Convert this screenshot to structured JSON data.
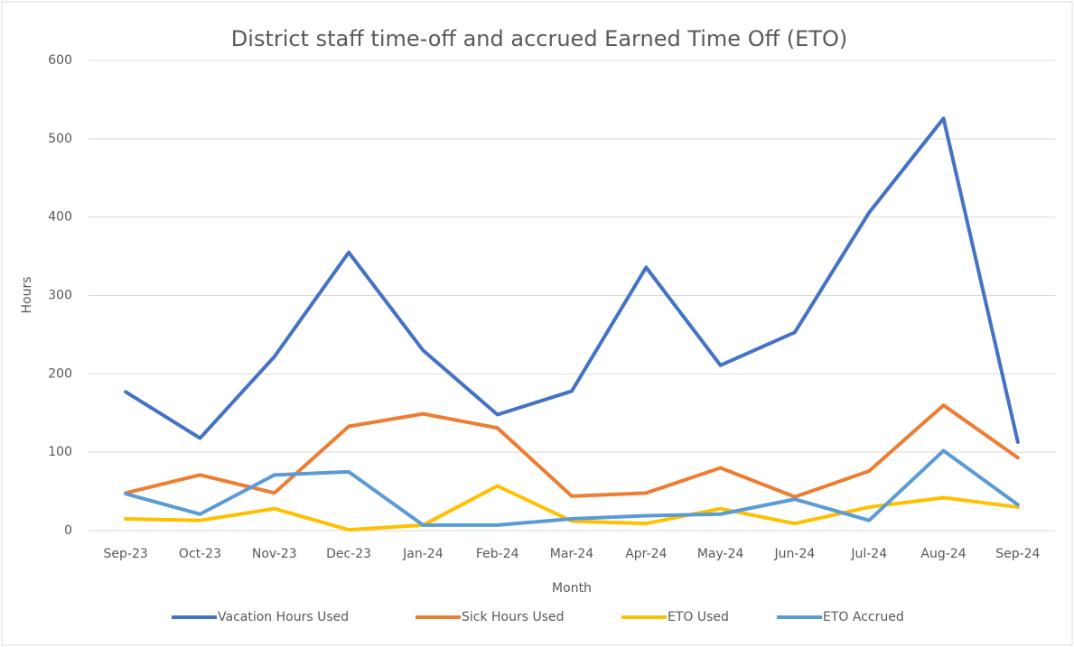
{
  "chart_data": {
    "type": "line",
    "title": "District staff time-off and accrued Earned Time Off (ETO)",
    "x_label": "Month",
    "y_label": "Hours",
    "categories": [
      "Sep-23",
      "Oct-23",
      "Nov-23",
      "Dec-23",
      "Jan-24",
      "Feb-24",
      "Mar-24",
      "Apr-24",
      "May-24",
      "Jun-24",
      "Jul-24",
      "Aug-24",
      "Sep-24"
    ],
    "series": [
      {
        "name": "Vacation Hours Used",
        "color": "#4472c4",
        "values": [
          177,
          118,
          222,
          355,
          230,
          148,
          178,
          336,
          211,
          253,
          406,
          526,
          113
        ]
      },
      {
        "name": "Sick Hours Used",
        "color": "#ed7d31",
        "values": [
          48,
          71,
          48,
          133,
          149,
          131,
          44,
          48,
          80,
          43,
          76,
          160,
          93
        ]
      },
      {
        "name": "ETO Used",
        "color": "#ffc000",
        "values": [
          15,
          13,
          28,
          1,
          7,
          57,
          12,
          9,
          28,
          9,
          30,
          42,
          30
        ]
      },
      {
        "name": "ETO Accrued",
        "color": "#5b9bd5",
        "values": [
          47,
          21,
          71,
          75,
          7,
          7,
          15,
          19,
          21,
          40,
          13,
          102,
          33
        ]
      }
    ],
    "ylim": [
      0,
      600
    ],
    "yticks": [
      0,
      100,
      200,
      300,
      400,
      500,
      600
    ],
    "grid": true,
    "legend": "bottom"
  }
}
